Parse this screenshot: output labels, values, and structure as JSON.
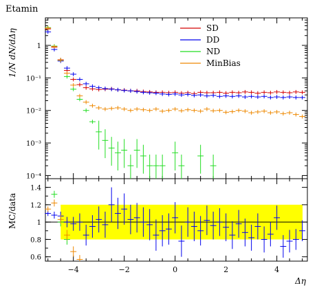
{
  "title": "Etamin",
  "ylabel_top": "1/N dN/dΔη",
  "ylabel_bottom": "MC/data",
  "xlabel": "Δη",
  "chart_data": [
    {
      "type": "scatter",
      "panel": "main",
      "yscale": "log",
      "xlim": [
        -5.1,
        5.2
      ],
      "ylim": [
        8e-05,
        7
      ],
      "yticks": [
        {
          "value": 1,
          "label": "1"
        },
        {
          "value": 0.1,
          "label": "10⁻¹"
        },
        {
          "value": 0.01,
          "label": "10⁻²"
        },
        {
          "value": 0.001,
          "label": "10⁻³"
        },
        {
          "value": 0.0001,
          "label": "10⁻⁴"
        }
      ],
      "legend_placement": "top-right",
      "series": [
        {
          "name": "SD",
          "color": "#d40000",
          "x": [
            -5.0,
            -4.75,
            -4.5,
            -4.25,
            -4.0,
            -3.75,
            -3.5,
            -3.25,
            -3.0,
            -2.75,
            -2.5,
            -2.25,
            -2.0,
            -1.75,
            -1.5,
            -1.25,
            -1.0,
            -0.75,
            -0.5,
            -0.25,
            0.0,
            0.25,
            0.5,
            0.75,
            1.0,
            1.25,
            1.5,
            1.75,
            2.0,
            2.25,
            2.5,
            2.75,
            3.0,
            3.25,
            3.5,
            3.75,
            4.0,
            4.25,
            4.5,
            4.75,
            5.0
          ],
          "y": [
            3.2,
            0.88,
            0.36,
            0.17,
            0.09,
            0.062,
            0.05,
            0.046,
            0.044,
            0.045,
            0.046,
            0.043,
            0.042,
            0.04,
            0.04,
            0.038,
            0.037,
            0.036,
            0.036,
            0.035,
            0.036,
            0.034,
            0.035,
            0.033,
            0.036,
            0.035,
            0.035,
            0.036,
            0.034,
            0.036,
            0.035,
            0.037,
            0.036,
            0.034,
            0.036,
            0.035,
            0.037,
            0.036,
            0.035,
            0.037,
            0.036
          ]
        },
        {
          "name": "DD",
          "color": "#0000ee",
          "x": [
            -5.0,
            -4.75,
            -4.5,
            -4.25,
            -4.0,
            -3.75,
            -3.5,
            -3.25,
            -3.0,
            -2.75,
            -2.5,
            -2.25,
            -2.0,
            -1.75,
            -1.5,
            -1.25,
            -1.0,
            -0.75,
            -0.5,
            -0.25,
            0.0,
            0.25,
            0.5,
            0.75,
            1.0,
            1.25,
            1.5,
            1.75,
            2.0,
            2.25,
            2.5,
            2.75,
            3.0,
            3.25,
            3.5,
            3.75,
            4.0,
            4.25,
            4.5,
            4.75,
            5.0
          ],
          "y": [
            2.6,
            0.75,
            0.33,
            0.2,
            0.13,
            0.09,
            0.066,
            0.055,
            0.05,
            0.047,
            0.045,
            0.043,
            0.041,
            0.04,
            0.038,
            0.036,
            0.035,
            0.034,
            0.032,
            0.031,
            0.032,
            0.03,
            0.031,
            0.029,
            0.03,
            0.028,
            0.029,
            0.027,
            0.028,
            0.027,
            0.028,
            0.026,
            0.027,
            0.026,
            0.027,
            0.025,
            0.026,
            0.025,
            0.026,
            0.025,
            0.025
          ]
        },
        {
          "name": "ND",
          "color": "#22dd22",
          "x": [
            -5.0,
            -4.75,
            -4.5,
            -4.25,
            -4.0,
            -3.75,
            -3.5,
            -3.25,
            -3.0,
            -2.75,
            -2.5,
            -2.25,
            -2.0,
            -1.75,
            -1.5,
            -1.25,
            -1.0,
            -0.75,
            -0.5,
            0.0,
            0.25,
            1.0,
            1.5
          ],
          "y": [
            3.5,
            0.95,
            0.35,
            0.11,
            0.045,
            0.022,
            0.01,
            0.0045,
            0.0022,
            0.0012,
            0.0007,
            0.0005,
            0.0006,
            0.0002,
            0.0006,
            0.0004,
            0.0002,
            0.0002,
            0.0002,
            0.0005,
            0.0002,
            0.0004,
            0.0002
          ]
        },
        {
          "name": "MinBias",
          "color": "#ee8800",
          "x": [
            -5.0,
            -4.75,
            -4.5,
            -4.25,
            -4.0,
            -3.75,
            -3.5,
            -3.25,
            -3.0,
            -2.75,
            -2.5,
            -2.25,
            -2.0,
            -1.75,
            -1.5,
            -1.25,
            -1.0,
            -0.75,
            -0.5,
            -0.25,
            0.0,
            0.25,
            0.5,
            0.75,
            1.0,
            1.25,
            1.5,
            1.75,
            2.0,
            2.25,
            2.5,
            2.75,
            3.0,
            3.25,
            3.5,
            3.75,
            4.0,
            4.25,
            4.5,
            4.75,
            5.0
          ],
          "y": [
            3.4,
            0.92,
            0.35,
            0.14,
            0.06,
            0.028,
            0.018,
            0.014,
            0.012,
            0.011,
            0.0115,
            0.012,
            0.011,
            0.01,
            0.011,
            0.0105,
            0.01,
            0.011,
            0.0095,
            0.01,
            0.011,
            0.0098,
            0.0105,
            0.01,
            0.0095,
            0.011,
            0.0098,
            0.01,
            0.0088,
            0.0092,
            0.01,
            0.0095,
            0.0085,
            0.009,
            0.0095,
            0.0085,
            0.009,
            0.008,
            0.0085,
            0.0075,
            0.0065
          ]
        }
      ]
    },
    {
      "type": "scatter",
      "panel": "ratio",
      "xlim": [
        -5.1,
        5.2
      ],
      "ylim": [
        0.55,
        1.5
      ],
      "xticks": [
        -4,
        -2,
        0,
        2,
        4
      ],
      "yticks": [
        0.6,
        0.8,
        1,
        1.2,
        1.4
      ],
      "reference_line": 1,
      "band": {
        "color": "#ffff00",
        "x": [
          -4.5,
          5.2
        ],
        "half_width": 0.2
      },
      "series": [
        {
          "name": "DD",
          "color": "#0000ee",
          "x": [
            -5.0,
            -4.75,
            -4.5,
            -4.25,
            -4.0,
            -3.75,
            -3.5,
            -3.25,
            -3.0,
            -2.75,
            -2.5,
            -2.25,
            -2.0,
            -1.75,
            -1.5,
            -1.25,
            -1.0,
            -0.75,
            -0.5,
            -0.25,
            0.0,
            0.25,
            0.5,
            0.75,
            1.0,
            1.25,
            1.5,
            1.75,
            2.0,
            2.25,
            2.5,
            2.75,
            3.0,
            3.25,
            3.5,
            3.75,
            4.0,
            4.25,
            4.5,
            4.75,
            5.0
          ],
          "y": [
            1.1,
            1.08,
            1.07,
            1.0,
            0.98,
            1.0,
            0.85,
            0.95,
            1.03,
            0.97,
            1.2,
            1.1,
            1.15,
            1.03,
            1.05,
            1.0,
            0.97,
            0.85,
            0.9,
            0.92,
            1.05,
            0.78,
            1.0,
            0.95,
            0.9,
            1.02,
            0.96,
            1.0,
            0.94,
            0.85,
            0.98,
            0.88,
            0.82,
            0.95,
            0.8,
            0.86,
            1.05,
            0.72,
            0.78,
            0.8,
            0.9
          ],
          "err": [
            0.03,
            0.04,
            0.05,
            0.06,
            0.08,
            0.1,
            0.12,
            0.13,
            0.15,
            0.15,
            0.2,
            0.18,
            0.18,
            0.17,
            0.17,
            0.17,
            0.18,
            0.18,
            0.18,
            0.18,
            0.18,
            0.18,
            0.17,
            0.17,
            0.17,
            0.17,
            0.16,
            0.16,
            0.16,
            0.16,
            0.16,
            0.16,
            0.15,
            0.15,
            0.15,
            0.14,
            0.14,
            0.13,
            0.13,
            0.12,
            0.12
          ]
        },
        {
          "name": "ND",
          "color": "#22dd22",
          "x": [
            -4.75,
            -4.5,
            -4.25
          ],
          "y": [
            1.32,
            1.0,
            0.8
          ],
          "err": [
            0.04,
            0.05,
            0.06
          ]
        },
        {
          "name": "MinBias",
          "color": "#ee8800",
          "x": [
            -5.0,
            -4.75,
            -4.5,
            -4.25,
            -4.0,
            -3.75
          ],
          "y": [
            1.15,
            1.22,
            1.03,
            0.85,
            0.66,
            0.57
          ],
          "err": [
            0.03,
            0.04,
            0.05,
            0.06,
            0.06,
            0.05
          ]
        }
      ]
    }
  ]
}
